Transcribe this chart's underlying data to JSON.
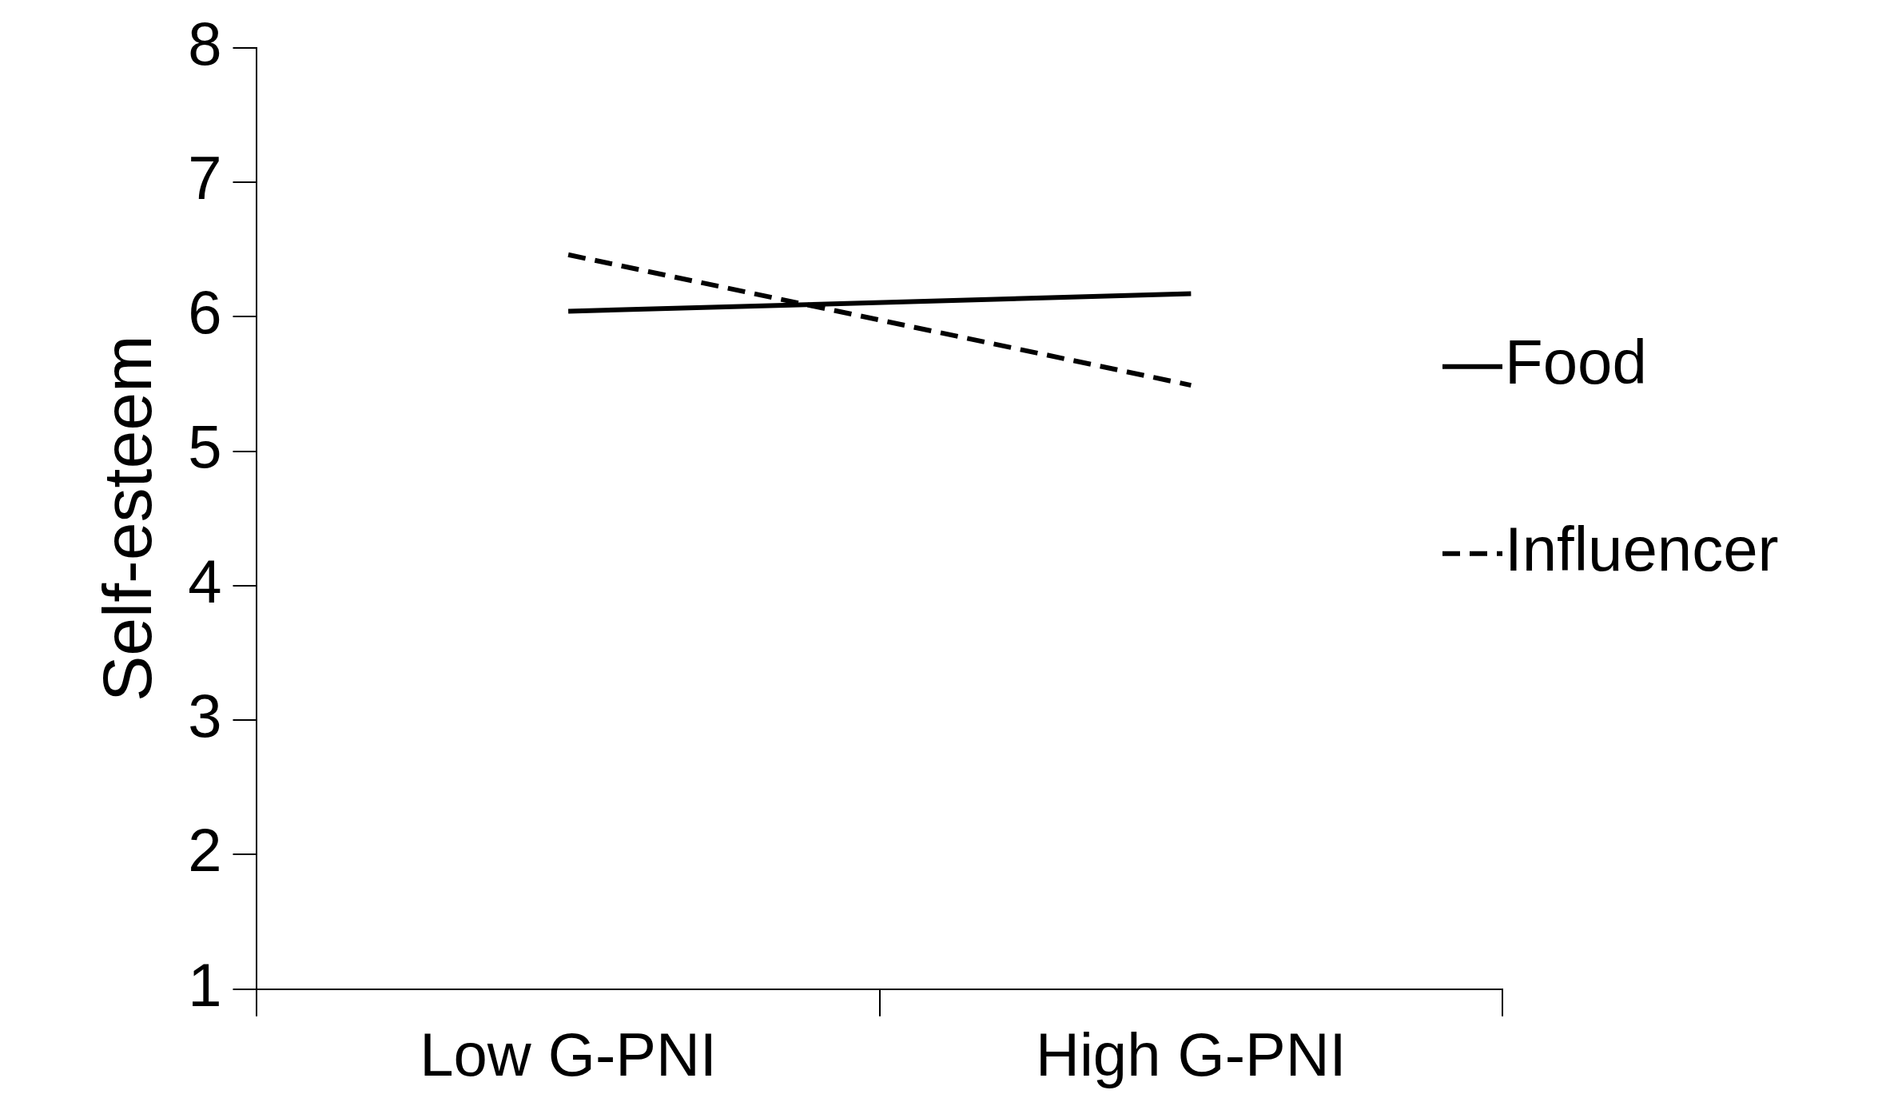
{
  "chart_data": {
    "type": "line",
    "ylabel": "Self-esteem",
    "categories": [
      "Low G-PNI",
      "High G-PNI"
    ],
    "series": [
      {
        "name": "Food",
        "color": "#000000",
        "line_style": "solid",
        "values": [
          6.04,
          6.17
        ]
      },
      {
        "name": "Influencer",
        "color": "#000000",
        "line_style": "dashed",
        "values": [
          6.46,
          5.49
        ]
      }
    ],
    "ylim": [
      1,
      8
    ],
    "yticks": [
      1,
      2,
      3,
      4,
      5,
      6,
      7,
      8
    ],
    "grid": false,
    "legend": "right"
  }
}
